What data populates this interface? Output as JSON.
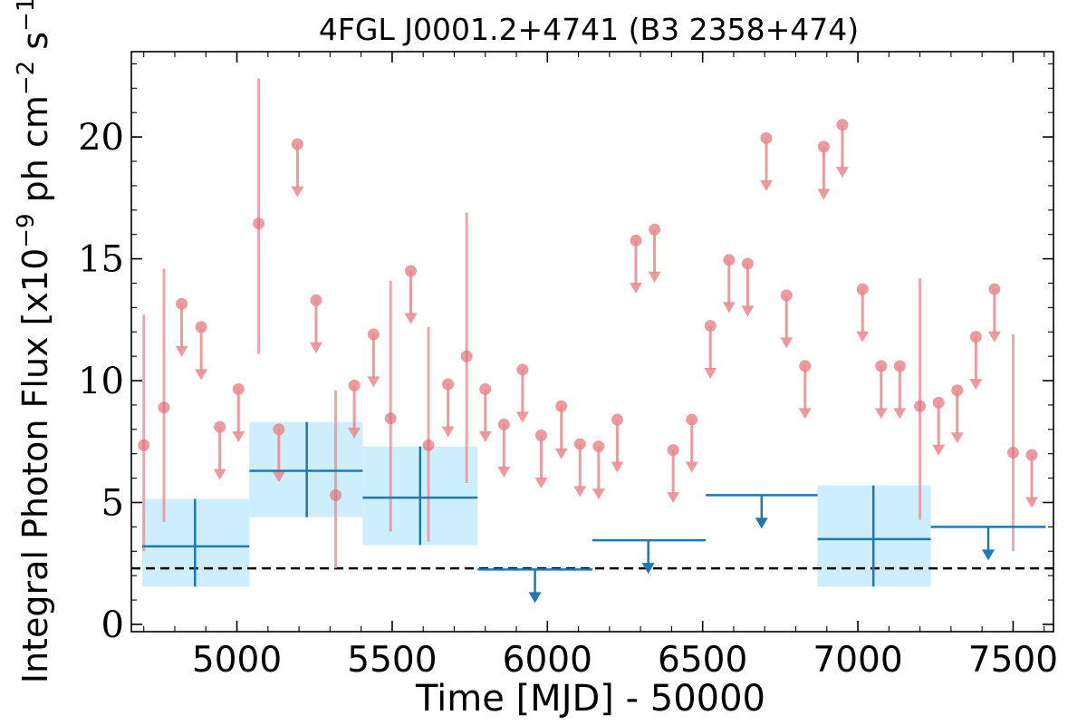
{
  "chart_data": {
    "type": "scatter",
    "title": "4FGL J0001.2+4741 (B3 2358+474)",
    "xlabel": "Time [MJD] - 50000",
    "ylabel": {
      "base": "Integral Photon Flux [x10",
      "exp1": "−9",
      "mid": " ph cm",
      "exp2": "−2",
      "s": " s",
      "exp3": "−1",
      "end": "]"
    },
    "xlim": [
      4660,
      7630
    ],
    "ylim": [
      -0.3,
      23.5
    ],
    "xticks": [
      5000,
      5500,
      6000,
      6500,
      7000,
      7500
    ],
    "yticks": [
      0,
      5,
      10,
      15,
      20
    ],
    "grid": false,
    "legend": "none",
    "colors": {
      "short_bins": "#e88a8f",
      "long_bins": "#1f77b4",
      "long_bins_band": "#cdeefc",
      "reference_line": "#000000"
    },
    "reference_line": {
      "y": 2.3,
      "style": "dashed"
    },
    "short_bins": {
      "detections": [
        {
          "x": 4700,
          "y": 7.35,
          "ylo": 3.0,
          "yhi": 12.7
        },
        {
          "x": 4765,
          "y": 8.9,
          "ylo": 4.2,
          "yhi": 14.6
        },
        {
          "x": 5070,
          "y": 16.45,
          "ylo": 11.1,
          "yhi": 22.4
        },
        {
          "x": 5318,
          "y": 5.3,
          "ylo": 2.3,
          "yhi": 9.6
        },
        {
          "x": 5495,
          "y": 8.45,
          "ylo": 3.8,
          "yhi": 14.1
        },
        {
          "x": 5617,
          "y": 7.35,
          "ylo": 3.4,
          "yhi": 12.2
        },
        {
          "x": 5740,
          "y": 11.0,
          "ylo": 5.8,
          "yhi": 16.9
        },
        {
          "x": 7200,
          "y": 8.95,
          "ylo": 4.3,
          "yhi": 14.2
        },
        {
          "x": 7500,
          "y": 7.05,
          "ylo": 3.0,
          "yhi": 11.9
        }
      ],
      "upper_limits": [
        {
          "x": 4822,
          "y": 13.15
        },
        {
          "x": 4885,
          "y": 12.2
        },
        {
          "x": 4945,
          "y": 8.1
        },
        {
          "x": 5005,
          "y": 9.65
        },
        {
          "x": 5135,
          "y": 8.0
        },
        {
          "x": 5195,
          "y": 19.7
        },
        {
          "x": 5255,
          "y": 13.3
        },
        {
          "x": 5378,
          "y": 9.8
        },
        {
          "x": 5440,
          "y": 11.9
        },
        {
          "x": 5560,
          "y": 14.5
        },
        {
          "x": 5680,
          "y": 9.85
        },
        {
          "x": 5800,
          "y": 9.65
        },
        {
          "x": 5860,
          "y": 8.2
        },
        {
          "x": 5920,
          "y": 10.45
        },
        {
          "x": 5980,
          "y": 7.75
        },
        {
          "x": 6045,
          "y": 8.95
        },
        {
          "x": 6105,
          "y": 7.4
        },
        {
          "x": 6165,
          "y": 7.3
        },
        {
          "x": 6225,
          "y": 8.4
        },
        {
          "x": 6285,
          "y": 15.75
        },
        {
          "x": 6345,
          "y": 16.2
        },
        {
          "x": 6405,
          "y": 7.15
        },
        {
          "x": 6465,
          "y": 8.4
        },
        {
          "x": 6525,
          "y": 12.25
        },
        {
          "x": 6585,
          "y": 14.95
        },
        {
          "x": 6645,
          "y": 14.8
        },
        {
          "x": 6705,
          "y": 19.95
        },
        {
          "x": 6770,
          "y": 13.5
        },
        {
          "x": 6830,
          "y": 10.6
        },
        {
          "x": 6890,
          "y": 19.6
        },
        {
          "x": 6950,
          "y": 20.5
        },
        {
          "x": 7015,
          "y": 13.75
        },
        {
          "x": 7075,
          "y": 10.6
        },
        {
          "x": 7135,
          "y": 10.6
        },
        {
          "x": 7260,
          "y": 9.1
        },
        {
          "x": 7320,
          "y": 9.6
        },
        {
          "x": 7380,
          "y": 11.8
        },
        {
          "x": 7440,
          "y": 13.75
        },
        {
          "x": 7560,
          "y": 6.95
        }
      ]
    },
    "long_bins": {
      "detections": [
        {
          "x": 4865,
          "xlo": 4695,
          "xhi": 5040,
          "y": 3.2,
          "ylo": 1.55,
          "yhi": 5.15
        },
        {
          "x": 5225,
          "xlo": 5040,
          "xhi": 5405,
          "y": 6.3,
          "ylo": 4.4,
          "yhi": 8.3
        },
        {
          "x": 5590,
          "xlo": 5405,
          "xhi": 5775,
          "y": 5.2,
          "ylo": 3.25,
          "yhi": 7.3
        },
        {
          "x": 7050,
          "xlo": 6870,
          "xhi": 7235,
          "y": 3.5,
          "ylo": 1.55,
          "yhi": 5.7
        }
      ],
      "upper_limits": [
        {
          "x": 5960,
          "xlo": 5775,
          "xhi": 6145,
          "y": 2.25
        },
        {
          "x": 6325,
          "xlo": 6145,
          "xhi": 6510,
          "y": 3.45
        },
        {
          "x": 6690,
          "xlo": 6510,
          "xhi": 6870,
          "y": 5.3
        },
        {
          "x": 7420,
          "xlo": 7235,
          "xhi": 7605,
          "y": 4.0
        }
      ]
    }
  }
}
